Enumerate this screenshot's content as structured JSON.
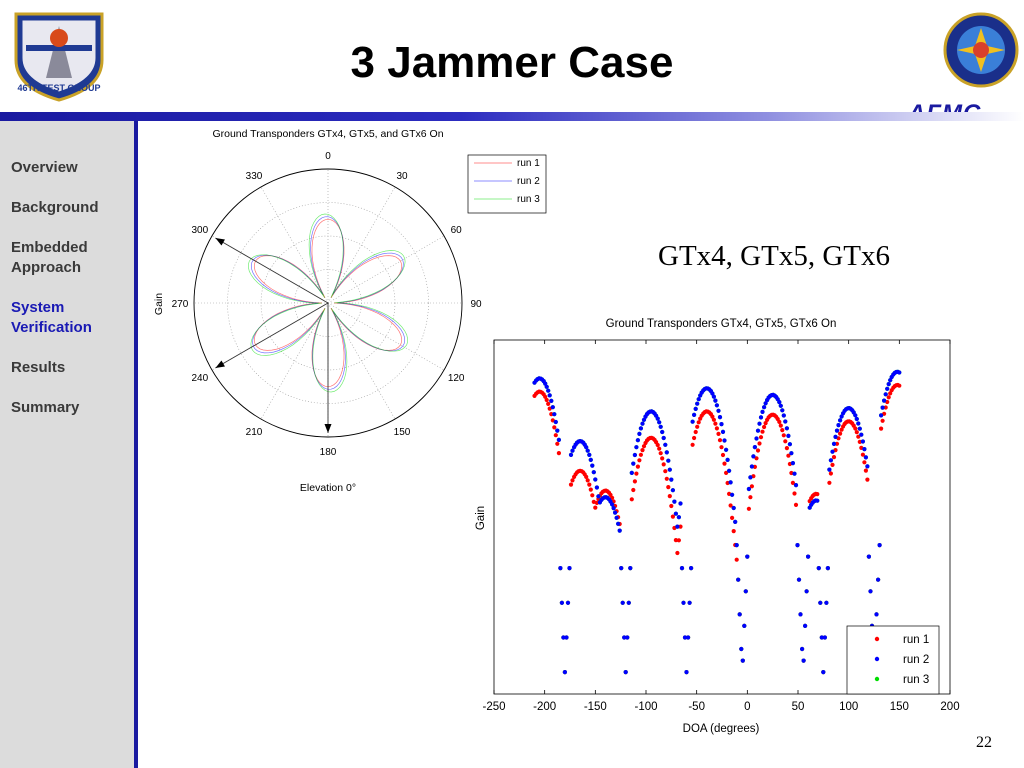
{
  "slide": {
    "title": "3 Jammer Case",
    "subtitle": "GTx4, GTx5, GTx6",
    "page_number": "22",
    "afmc_text": "AFMC",
    "left_logo_text": "46TH TEST GROUP"
  },
  "sidebar": {
    "items": [
      {
        "label": "Overview",
        "active": false
      },
      {
        "label": "Background",
        "active": false
      },
      {
        "label": "Embedded Approach",
        "active": false
      },
      {
        "label": "System Verification",
        "active": true
      },
      {
        "label": "Results",
        "active": false
      },
      {
        "label": "Summary",
        "active": false
      }
    ]
  },
  "colors": {
    "band": "#1a1aa0",
    "active_nav": "#1a1ab4",
    "run1": "#ff0000",
    "run2": "#0000ff",
    "run3": "#00dd00"
  },
  "chart_data": [
    {
      "type": "polar",
      "title": "Ground Transponders GTx4, GTx5, and GTx6 On",
      "xlabel": "Elevation 0°",
      "ylabel": "Gain",
      "angle_ticks": [
        "0",
        "30",
        "60",
        "90",
        "120",
        "150",
        "180",
        "210",
        "240",
        "270",
        "300",
        "330"
      ],
      "legend": [
        "run 1",
        "run 2",
        "run 3"
      ],
      "legend_position": "top-right",
      "arrows_deg": [
        -60,
        -120,
        180
      ]
    },
    {
      "type": "scatter",
      "title": "Ground Transponders GTx4, GTx5, GTx6 On",
      "xlabel": "DOA (degrees)",
      "ylabel": "Gain",
      "xlim": [
        -250,
        200
      ],
      "xticks": [
        -250,
        -200,
        -150,
        -100,
        -50,
        0,
        50,
        100,
        150,
        200
      ],
      "legend_position": "bottom-right",
      "nulls_deg": [
        -180,
        -120,
        -60,
        -5,
        55,
        75,
        125
      ],
      "series": [
        {
          "name": "run 1",
          "color": "#ff0000"
        },
        {
          "name": "run 2",
          "color": "#0000ff"
        },
        {
          "name": "run 3",
          "color": "#00dd00"
        }
      ]
    }
  ]
}
